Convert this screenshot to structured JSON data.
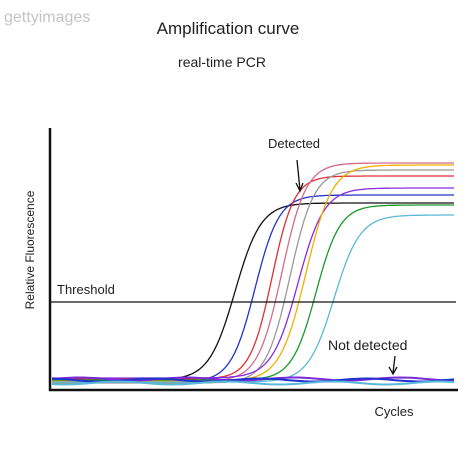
{
  "watermark": "gettyimages",
  "title": "Amplification curve",
  "subtitle": "real-time PCR",
  "y_label": "Relative Fluorescence",
  "x_label": "Cycles",
  "threshold_label": "Threshold",
  "detected_label": "Detected",
  "not_detected_label": "Not detected"
}
